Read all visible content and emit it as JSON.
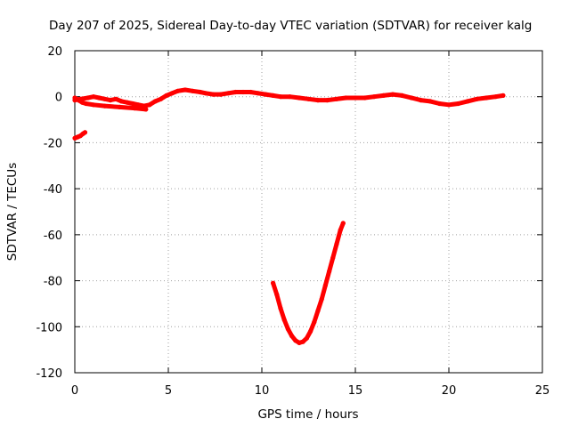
{
  "chart_data": {
    "type": "line",
    "title": "Day 207 of 2025, Sidereal Day-to-day VTEC variation (SDTVAR) for receiver kalg",
    "xlabel": "GPS time / hours",
    "ylabel": "SDTVAR / TECUs",
    "xlim": [
      0,
      25
    ],
    "ylim": [
      -120,
      20
    ],
    "xticks": [
      0,
      5,
      10,
      15,
      20,
      25
    ],
    "yticks": [
      20,
      0,
      -20,
      -40,
      -60,
      -80,
      -100,
      -120
    ],
    "grid": true,
    "series_color": "#ff0000",
    "series": [
      {
        "name": "main trace",
        "x": [
          0.0,
          0.3,
          0.7,
          1.0,
          1.3,
          1.6,
          1.9,
          2.2,
          2.5,
          2.8,
          3.1,
          3.4,
          3.7,
          4.0,
          4.3,
          4.6,
          4.9,
          5.2,
          5.5,
          5.9,
          6.3,
          6.7,
          7.0,
          7.4,
          7.8,
          8.2,
          8.6,
          9.0,
          9.4,
          9.8,
          10.2,
          10.6,
          11.0,
          11.5,
          12.0,
          12.5,
          13.0,
          13.5,
          14.0,
          14.5,
          15.0,
          15.5,
          16.0,
          16.5,
          17.0,
          17.5,
          18.0,
          18.5,
          19.0,
          19.5,
          20.0,
          20.5,
          21.0,
          21.5,
          22.0,
          22.5,
          22.9
        ],
        "y": [
          -1.5,
          -1.0,
          -0.5,
          0.0,
          -0.5,
          -1.0,
          -1.5,
          -1.0,
          -2.0,
          -2.5,
          -3.0,
          -3.5,
          -4.0,
          -3.5,
          -2.0,
          -1.0,
          0.5,
          1.5,
          2.5,
          3.0,
          2.5,
          2.0,
          1.5,
          1.0,
          1.0,
          1.5,
          2.0,
          2.0,
          2.0,
          1.5,
          1.0,
          0.5,
          0.0,
          0.0,
          -0.5,
          -1.0,
          -1.5,
          -1.5,
          -1.0,
          -0.5,
          -0.5,
          -0.5,
          0.0,
          0.5,
          1.0,
          0.5,
          -0.5,
          -1.5,
          -2.0,
          -3.0,
          -3.5,
          -3.0,
          -2.0,
          -1.0,
          -0.5,
          0.0,
          0.5
        ]
      },
      {
        "name": "lower branch",
        "x": [
          0.0,
          0.2,
          0.4,
          0.6,
          1.0,
          1.6,
          2.4,
          3.2,
          3.8
        ],
        "y": [
          -0.5,
          -1.5,
          -2.5,
          -3.0,
          -3.5,
          -4.0,
          -4.5,
          -5.0,
          -5.5
        ]
      },
      {
        "name": "early segment",
        "x": [
          0.0,
          0.15,
          0.3,
          0.45,
          0.55
        ],
        "y": [
          -18.0,
          -17.5,
          -17.0,
          -16.0,
          -15.5
        ]
      },
      {
        "name": "dip arc",
        "x": [
          10.6,
          10.8,
          11.0,
          11.2,
          11.4,
          11.6,
          11.8,
          12.0,
          12.2,
          12.4,
          12.6,
          12.8,
          13.0,
          13.2,
          13.4,
          13.6,
          13.8,
          14.0,
          14.2,
          14.35
        ],
        "y": [
          -81.0,
          -86.0,
          -92.0,
          -97.0,
          -101.0,
          -104.0,
          -106.0,
          -107.0,
          -106.5,
          -105.0,
          -102.0,
          -98.0,
          -93.0,
          -88.0,
          -82.0,
          -76.0,
          -70.0,
          -64.0,
          -58.0,
          -55.0
        ]
      }
    ]
  }
}
